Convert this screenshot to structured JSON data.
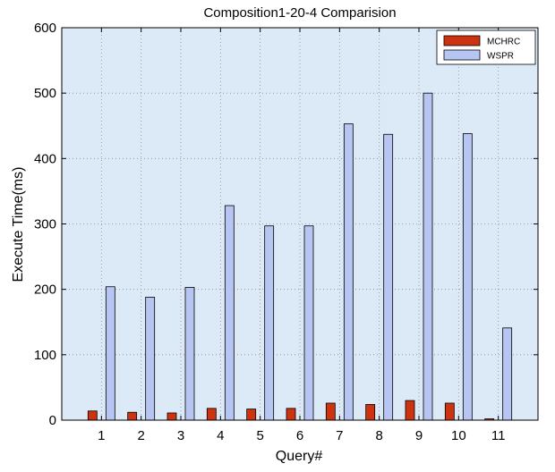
{
  "chart_data": {
    "type": "bar",
    "title": "Composition1-20-4 Comparision",
    "xlabel": "Query#",
    "ylabel": "Execute Time(ms)",
    "ylim": [
      0,
      600
    ],
    "yticks": [
      0,
      100,
      200,
      300,
      400,
      500,
      600
    ],
    "categories": [
      "1",
      "2",
      "3",
      "4",
      "5",
      "6",
      "7",
      "8",
      "9",
      "10",
      "11"
    ],
    "series": [
      {
        "name": "MCHRC",
        "color": "#cc3311",
        "values": [
          14,
          12,
          11,
          18,
          17,
          18,
          26,
          24,
          30,
          26,
          2
        ]
      },
      {
        "name": "WSPR",
        "color": "#b7c5f3",
        "values": [
          204,
          188,
          203,
          328,
          297,
          297,
          453,
          437,
          500,
          438,
          141
        ]
      }
    ],
    "grid": true,
    "legend_position": "top-right",
    "plot_background": "#dceaf8"
  }
}
